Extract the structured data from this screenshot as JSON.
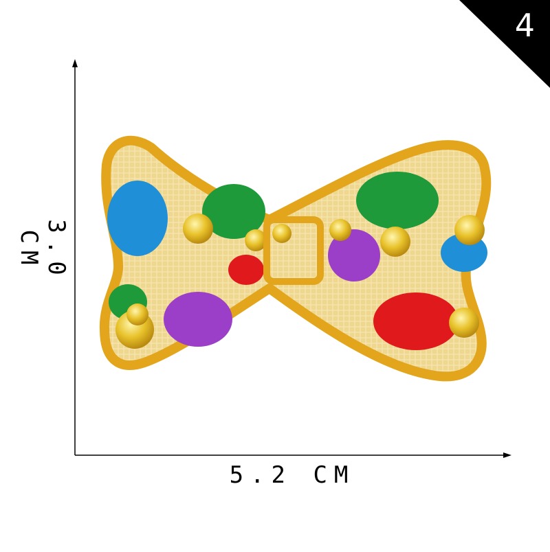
{
  "badge": {
    "number": "4"
  },
  "dimensions": {
    "width_label": "5.2 CM",
    "height_label": "3.0 CM"
  },
  "product": {
    "subject": "bow-tie-embroidered-patch"
  },
  "colors": {
    "background": "#ffffff",
    "badge_background": "#000000",
    "patch_border": "#e2a51c",
    "patch_fill": "#eed58a",
    "dot_blue": "#1f8fd8",
    "dot_green": "#1f9a3a",
    "dot_purple": "#9b3fc8",
    "dot_red": "#e0191c",
    "sequin_gold": "#e6c12a"
  }
}
